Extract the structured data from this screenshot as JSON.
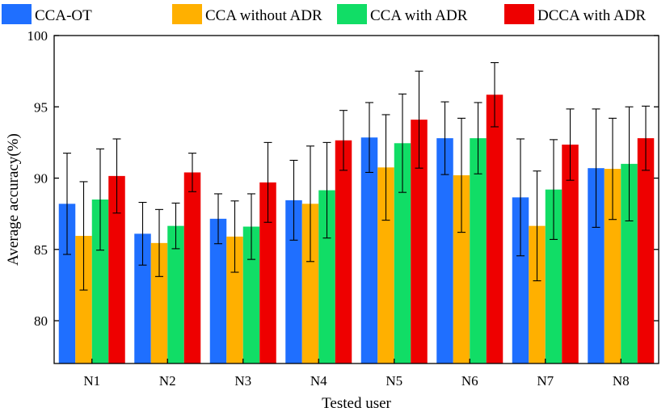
{
  "chart_data": {
    "type": "bar",
    "title": "",
    "xlabel": "Tested user",
    "ylabel": "Average accuracy(%)",
    "ylim": [
      77,
      100
    ],
    "yticks": [
      80,
      85,
      90,
      95,
      100
    ],
    "categories": [
      "N1",
      "N2",
      "N3",
      "N4",
      "N5",
      "N6",
      "N7",
      "N8"
    ],
    "legend_position": "top",
    "series": [
      {
        "name": "CCA-OT",
        "color": "#1f6fff",
        "values": [
          88.2,
          86.1,
          87.15,
          88.45,
          92.85,
          92.8,
          88.65,
          90.7
        ],
        "errors": [
          3.55,
          2.2,
          1.75,
          2.8,
          2.45,
          2.55,
          4.1,
          4.15
        ]
      },
      {
        "name": "CCA without ADR",
        "color": "#ffb000",
        "values": [
          85.95,
          85.45,
          85.9,
          88.2,
          90.75,
          90.2,
          86.65,
          90.65
        ],
        "errors": [
          3.8,
          2.35,
          2.5,
          4.05,
          3.7,
          4.0,
          3.85,
          3.55
        ]
      },
      {
        "name": "CCA with ADR",
        "color": "#11dd66",
        "values": [
          88.5,
          86.65,
          86.6,
          89.15,
          92.45,
          92.8,
          89.2,
          91.0
        ],
        "errors": [
          3.55,
          1.6,
          2.3,
          3.35,
          3.45,
          2.5,
          3.5,
          4.0
        ]
      },
      {
        "name": "DCCA with ADR",
        "color": "#ee0000",
        "values": [
          90.15,
          90.4,
          89.7,
          92.65,
          94.1,
          95.85,
          92.35,
          92.8
        ],
        "errors": [
          2.6,
          1.35,
          2.8,
          2.1,
          3.4,
          2.25,
          2.5,
          2.25
        ]
      }
    ]
  }
}
